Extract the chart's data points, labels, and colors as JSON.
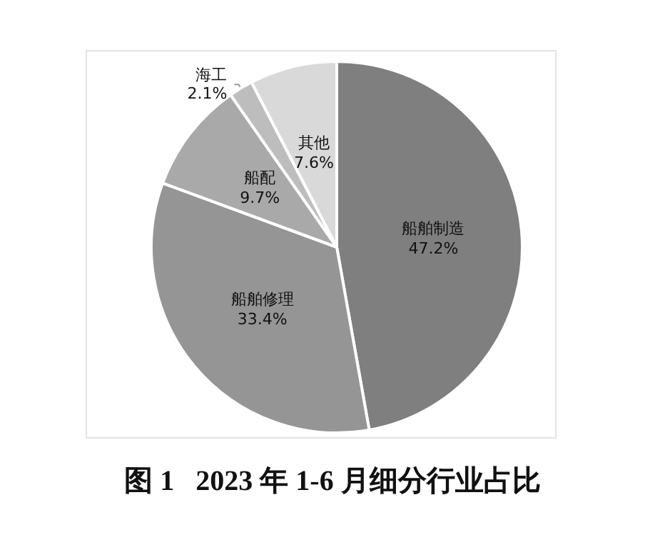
{
  "chart_data": {
    "type": "pie",
    "title": "图 1   2023 年 1-6 月细分行业占比",
    "categories": [
      "船舶制造",
      "船舶修理",
      "船配",
      "海工",
      "其他"
    ],
    "values": [
      47.2,
      33.4,
      9.7,
      2.1,
      7.6
    ],
    "value_labels": [
      "47.2%",
      "33.4%",
      "9.7%",
      "2.1%",
      "7.6%"
    ],
    "colors": [
      "#7f7f7f",
      "#959595",
      "#a9a9a9",
      "#bdbdbd",
      "#d9d9d9"
    ],
    "legend": false
  }
}
